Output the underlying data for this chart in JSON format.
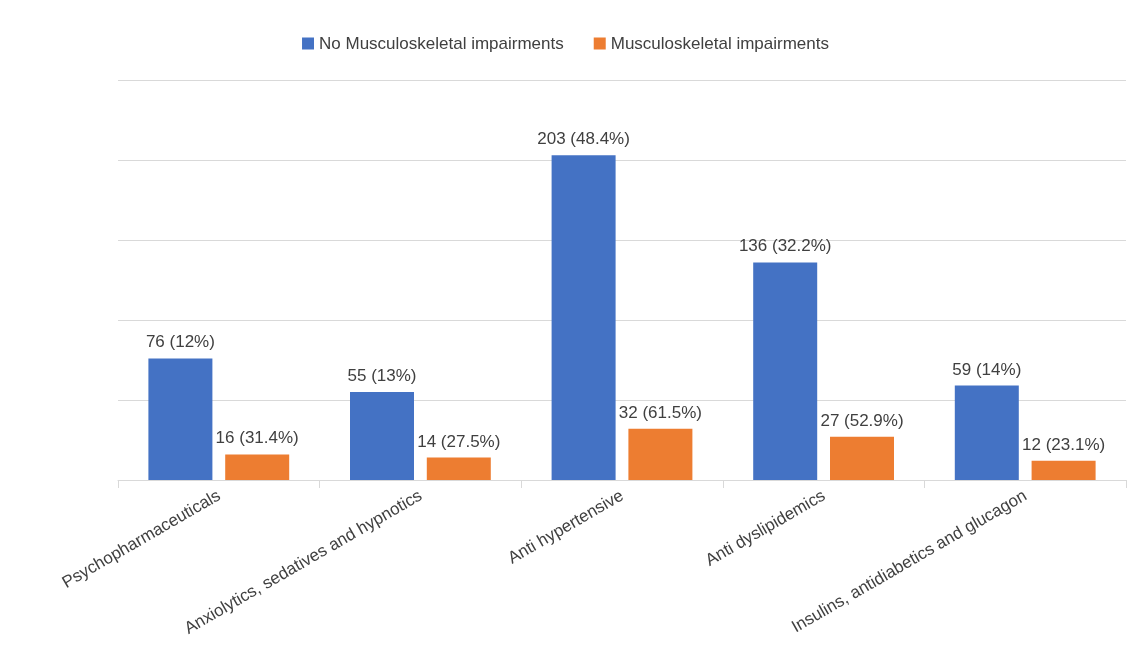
{
  "chart_data": {
    "type": "bar",
    "categories": [
      "Psychopharmaceuticals",
      "Anxiolytics, sedatives and hypnotics",
      "Anti hypertensive",
      "Anti dyslipidemics",
      "Insulins, antidiabetics and glucagon"
    ],
    "series": [
      {
        "name": "No Musculoskeletal impairments",
        "color": "#4472c4",
        "values": [
          76,
          55,
          203,
          136,
          59
        ],
        "value_labels": [
          "76 (12%)",
          "55 (13%)",
          "203 (48.4%)",
          "136 (32.2%)",
          "59 (14%)"
        ]
      },
      {
        "name": "Musculoskeletal impairments",
        "color": "#ed7d31",
        "values": [
          16,
          14,
          32,
          27,
          12
        ],
        "value_labels": [
          "16 (31.4%)",
          "14 (27.5%)",
          "32 (61.5%)",
          "27 (52.9%)",
          "12 (23.1%)"
        ]
      }
    ],
    "ylim": [
      0,
      250
    ],
    "yticks": [
      {
        "value": 0,
        "label": null
      },
      {
        "value": 50,
        "label": null
      },
      {
        "value": 100,
        "label": null
      },
      {
        "value": 150,
        "label": null
      },
      {
        "value": 200,
        "label": null
      },
      {
        "value": 250,
        "label": null
      }
    ],
    "grid": "y",
    "legend": "top",
    "tick_labels": "x"
  }
}
